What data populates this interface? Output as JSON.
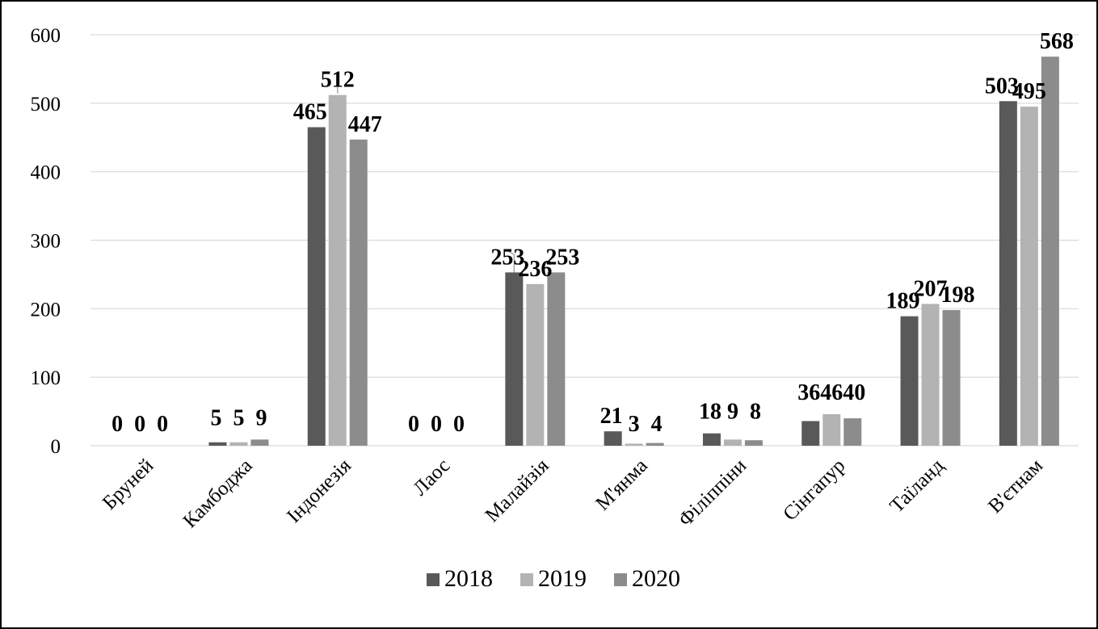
{
  "chart_data": {
    "type": "bar",
    "title": "",
    "xlabel": "",
    "ylabel": "",
    "ylim": [
      0,
      600
    ],
    "yticks": [
      0,
      100,
      200,
      300,
      400,
      500,
      600
    ],
    "grid": true,
    "legend_position": "bottom",
    "categories": [
      "Бруней",
      "Камбоджа",
      "Індонезія",
      "Лаос",
      "Малайзія",
      "М'янма",
      "Філіппіни",
      "Сінгапур",
      "Таїланд",
      "В'єтнам"
    ],
    "series": [
      {
        "name": "2018",
        "color": "#595959",
        "values": [
          0,
          5,
          465,
          0,
          253,
          21,
          18,
          36,
          189,
          503
        ]
      },
      {
        "name": "2019",
        "color": "#b3b3b3",
        "values": [
          0,
          5,
          512,
          0,
          236,
          3,
          9,
          46,
          207,
          495
        ]
      },
      {
        "name": "2020",
        "color": "#8c8c8c",
        "values": [
          0,
          9,
          447,
          0,
          253,
          4,
          8,
          40,
          198,
          568
        ]
      }
    ]
  }
}
